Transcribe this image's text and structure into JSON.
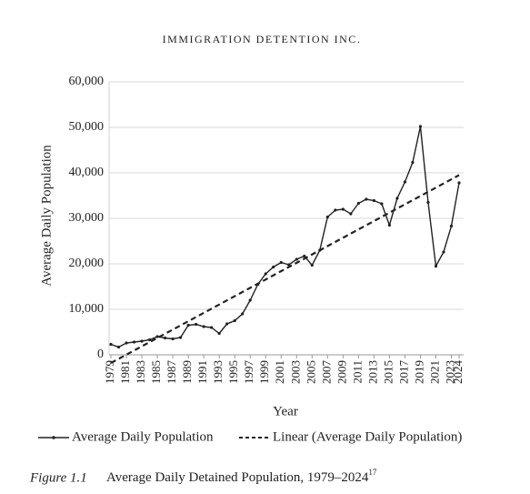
{
  "header": "IMMIGRATION DETENTION INC.",
  "chart_data": {
    "type": "line",
    "ylabel": "Average Daily Population",
    "xlabel": "Year",
    "x": [
      1979,
      1980,
      1981,
      1982,
      1983,
      1984,
      1985,
      1986,
      1987,
      1988,
      1989,
      1990,
      1991,
      1992,
      1993,
      1994,
      1995,
      1996,
      1997,
      1998,
      1999,
      2000,
      2001,
      2002,
      2003,
      2004,
      2005,
      2006,
      2007,
      2008,
      2009,
      2010,
      2011,
      2012,
      2013,
      2014,
      2015,
      2016,
      2017,
      2018,
      2019,
      2020,
      2021,
      2022,
      2023,
      2024
    ],
    "series": [
      {
        "name": "Average Daily Population",
        "color": "#222222",
        "values": [
          2300,
          1700,
          2600,
          2800,
          3000,
          3300,
          4000,
          3700,
          3500,
          3800,
          6500,
          6700,
          6200,
          6000,
          4700,
          6800,
          7500,
          9000,
          12000,
          15500,
          17800,
          19300,
          20300,
          19800,
          21000,
          21700,
          19700,
          23000,
          30300,
          31800,
          32000,
          31000,
          33300,
          34200,
          33900,
          33200,
          28500,
          34400,
          38000,
          42300,
          50200,
          33500,
          19500,
          22600,
          28300,
          37800
        ]
      }
    ],
    "trendline": {
      "name": "Linear (Average Daily Population)",
      "color": "#222222",
      "x": [
        1979,
        2024
      ],
      "values": [
        -1800,
        39500
      ]
    },
    "xlim": [
      1979,
      2024
    ],
    "xticks": [
      1979,
      1981,
      1983,
      1985,
      1987,
      1989,
      1991,
      1993,
      1995,
      1997,
      1999,
      2001,
      2003,
      2005,
      2007,
      2009,
      2011,
      2013,
      2015,
      2017,
      2019,
      2021,
      2023,
      2024
    ],
    "ylim": [
      0,
      60000
    ],
    "yticks": [
      0,
      {
        "value": 10000,
        "label": "10,000"
      },
      {
        "value": 20000,
        "label": "20,000"
      },
      {
        "value": 30000,
        "label": "30,000"
      },
      {
        "value": 40000,
        "label": "40,000"
      },
      {
        "value": 50000,
        "label": "50,000"
      },
      {
        "value": 60000,
        "label": "60,000"
      }
    ],
    "grid": true
  },
  "caption": {
    "label": "Figure 1.1",
    "text": "Average Daily Detained Population, 1979–2024",
    "note": "17"
  }
}
